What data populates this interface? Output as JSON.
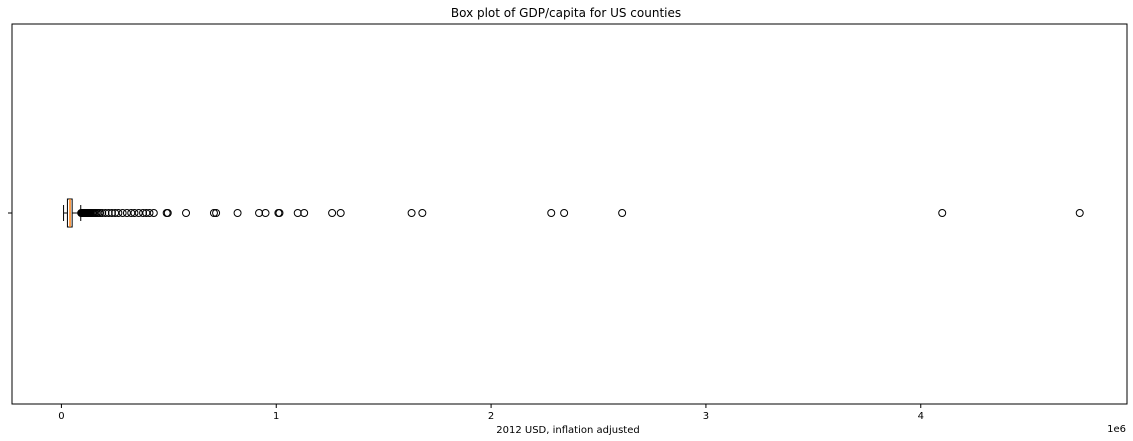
{
  "chart_data": {
    "type": "box",
    "orientation": "horizontal",
    "title": "Box plot of GDP/capita for US counties",
    "xlabel": "2012 USD, inflation adjusted",
    "ylabel": "",
    "x_offset_label": "1e6",
    "xlim": [
      -230000,
      4960000
    ],
    "xticks": [
      0,
      1,
      2,
      3,
      4
    ],
    "xtick_scale": 1000000,
    "grid": false,
    "box": {
      "whisker_low": 10000,
      "q1": 28000,
      "median": 40000,
      "q3": 50000,
      "whisker_high": 90000
    },
    "outliers": [
      92000,
      95000,
      98000,
      101000,
      104000,
      107000,
      110000,
      113000,
      116000,
      119000,
      122000,
      126000,
      130000,
      135000,
      140000,
      146000,
      152000,
      158000,
      165000,
      172000,
      180000,
      190000,
      205000,
      220000,
      235000,
      250000,
      265000,
      285000,
      305000,
      325000,
      340000,
      360000,
      380000,
      395000,
      410000,
      430000,
      490000,
      495000,
      580000,
      710000,
      720000,
      820000,
      920000,
      950000,
      1010000,
      1015000,
      1100000,
      1130000,
      1260000,
      1300000,
      1630000,
      1680000,
      2280000,
      2340000,
      2610000,
      4100000,
      4740000
    ],
    "colors": {
      "box_edge": "#000000",
      "median": "#ff7f0e",
      "outlier_edge": "#000000"
    }
  }
}
